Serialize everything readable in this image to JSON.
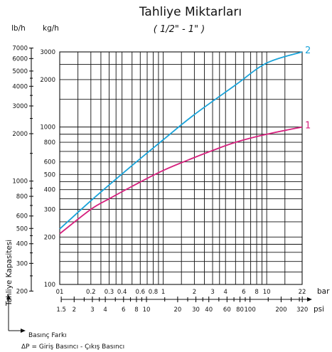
{
  "chart_data": {
    "type": "line",
    "title": "Tahliye Miktarları",
    "subtitle": "( 1/2\" -  1\" )",
    "y_units": [
      "lb/h",
      "kg/h"
    ],
    "ylabel": "Tahliye Kapasitesi",
    "xlabel": "Basınç Farkı",
    "xnote": "ΔP = Giriş Basıncı - Çıkış Basıncı",
    "x_scale": "log",
    "y_scale": "log",
    "xlim_bar": [
      0.1,
      22
    ],
    "ylim_kg": [
      100,
      3000
    ],
    "x_units": [
      "bar",
      "psi"
    ],
    "x_ticks_bar": [
      "01",
      "0.2",
      "0.3",
      "0.4",
      "0.6",
      "0.8",
      "1",
      "2",
      "3",
      "4",
      "6",
      "8",
      "10",
      "22"
    ],
    "x_ticks_psi": [
      "1.5",
      "2",
      "3",
      "4",
      "6",
      "8",
      "10",
      "20",
      "30",
      "40",
      "60",
      "80",
      "100",
      "200",
      "320"
    ],
    "y_ticks_kg": [
      "100",
      "200",
      "300",
      "400",
      "500",
      "600",
      "800",
      "1000",
      "2000",
      "3000"
    ],
    "y_ticks_lb": [
      "200",
      "300",
      "400",
      "500",
      "600",
      "800",
      "1000",
      "2000",
      "3000",
      "4000",
      "5000",
      "6000",
      "7000"
    ],
    "series": [
      {
        "name": "2",
        "color": "#1aa3d9",
        "x": [
          0.1,
          0.2,
          0.5,
          1,
          2,
          5,
          10,
          22
        ],
        "y": [
          225,
          340,
          570,
          830,
          1200,
          1850,
          2550,
          3000
        ]
      },
      {
        "name": "1",
        "color": "#d6217e",
        "x": [
          0.1,
          0.2,
          0.3,
          0.5,
          1,
          2,
          3,
          5,
          10,
          22
        ],
        "y": [
          210,
          300,
          350,
          420,
          530,
          640,
          710,
          800,
          900,
          1000
        ]
      }
    ],
    "grid": true
  }
}
